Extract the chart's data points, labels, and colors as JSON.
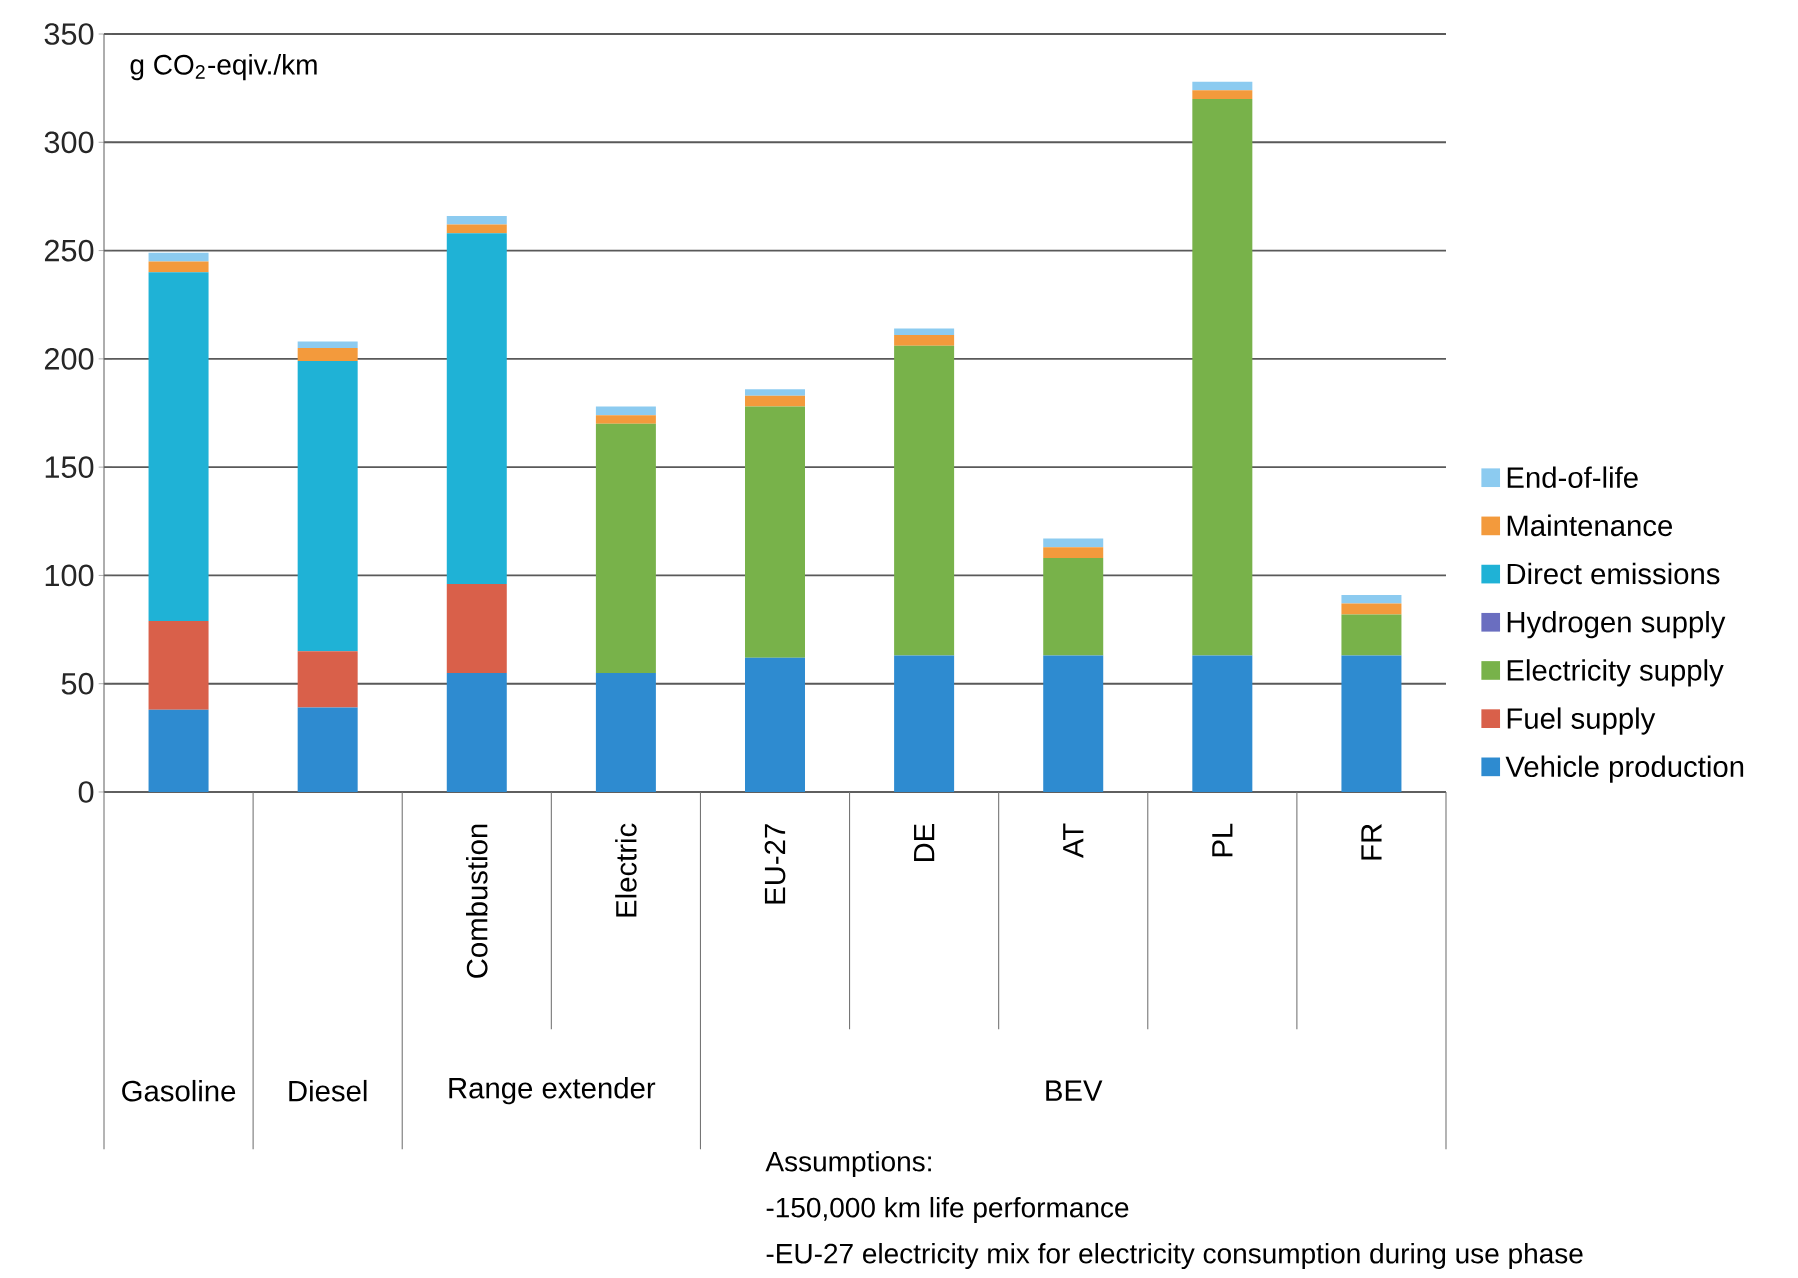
{
  "chart_data": {
    "type": "bar",
    "stacked": true,
    "ylabel": "g CO$_{2}$-eqiv./km",
    "categories": [
      null,
      null,
      "Combustion",
      "Electric",
      "EU-27",
      "DE",
      "AT",
      "PL",
      "FR"
    ],
    "series": [
      {
        "name": "Vehicle production",
        "color": "#2e8bd0",
        "values": [
          38,
          39,
          55,
          55,
          62,
          63,
          63,
          63,
          63
        ]
      },
      {
        "name": "Fuel supply",
        "color": "#d9604a",
        "values": [
          41,
          26,
          41,
          0,
          0,
          0,
          0,
          0,
          0
        ]
      },
      {
        "name": "Electricity supply",
        "color": "#78b24a",
        "values": [
          0,
          0,
          0,
          115,
          116,
          143,
          45,
          257,
          19
        ]
      },
      {
        "name": "Hydrogen supply",
        "color": "#6a6ec0",
        "values": [
          0,
          0,
          0,
          0,
          0,
          0,
          0,
          0,
          0
        ]
      },
      {
        "name": "Direct emissions",
        "color": "#1fb2d6",
        "values": [
          161,
          134,
          162,
          0,
          0,
          0,
          0,
          0,
          0
        ]
      },
      {
        "name": "Maintenance",
        "color": "#f39a3c",
        "values": [
          5,
          6,
          4,
          4,
          5,
          5,
          5,
          4,
          5
        ]
      },
      {
        "name": "End-of-life",
        "color": "#8ccbf0",
        "values": [
          4,
          3,
          4,
          4,
          3,
          3,
          4,
          4,
          4
        ]
      }
    ],
    "ylim": [
      0,
      350
    ],
    "yticks": [
      0,
      50,
      100,
      150,
      200,
      250,
      300,
      350
    ],
    "grid": "y",
    "legend": "right",
    "annotations": [
      "Gasoline",
      "Diesel",
      "Range extender",
      "BEV",
      "Assumptions:",
      "-150,000 km life performance",
      "-EU-27 electricity mix for electricity consumption during use phase"
    ]
  }
}
